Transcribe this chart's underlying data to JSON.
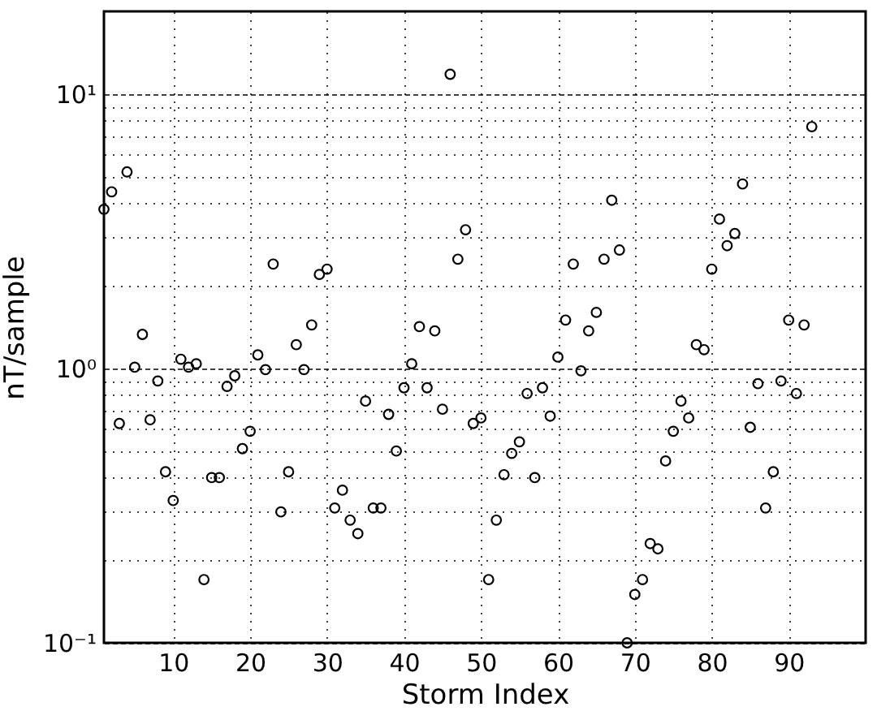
{
  "chart_data": {
    "type": "scatter",
    "xlabel": "Storm Index",
    "ylabel": "nT/sample",
    "color": "#000000",
    "marker": "circle",
    "log": "y",
    "grid": true,
    "xlim": [
      1,
      100
    ],
    "xticks": [
      10,
      20,
      30,
      40,
      50,
      60,
      70,
      80,
      90
    ],
    "ylim": [
      0.1,
      20
    ],
    "yticks": [
      {
        "value": 0.1,
        "label": "10⁻¹"
      },
      {
        "value": 0.2,
        "label": null
      },
      {
        "value": 0.3,
        "label": null
      },
      {
        "value": 0.4,
        "label": null
      },
      {
        "value": 0.5,
        "label": null
      },
      {
        "value": 0.6,
        "label": null
      },
      {
        "value": 0.7,
        "label": null
      },
      {
        "value": 0.8,
        "label": null
      },
      {
        "value": 0.9,
        "label": null
      },
      {
        "value": 1,
        "label": "10⁰"
      },
      {
        "value": 2,
        "label": null
      },
      {
        "value": 3,
        "label": null
      },
      {
        "value": 4,
        "label": null
      },
      {
        "value": 5,
        "label": null
      },
      {
        "value": 6,
        "label": null
      },
      {
        "value": 7,
        "label": null
      },
      {
        "value": 8,
        "label": null
      },
      {
        "value": 9,
        "label": null
      },
      {
        "value": 10,
        "label": "10¹"
      }
    ],
    "x": [
      1,
      2,
      3,
      4,
      5,
      6,
      7,
      8,
      9,
      10,
      11,
      12,
      13,
      14,
      15,
      16,
      17,
      18,
      19,
      20,
      21,
      22,
      23,
      24,
      25,
      26,
      27,
      28,
      29,
      30,
      31,
      32,
      33,
      34,
      35,
      36,
      37,
      38,
      39,
      40,
      41,
      42,
      43,
      44,
      45,
      46,
      47,
      48,
      49,
      50,
      51,
      52,
      53,
      54,
      55,
      56,
      57,
      58,
      59,
      60,
      61,
      62,
      63,
      64,
      65,
      66,
      67,
      68,
      69,
      70,
      71,
      72,
      73,
      74,
      75,
      76,
      77,
      78,
      79,
      80,
      81,
      82,
      83,
      84,
      85,
      86,
      87,
      88,
      89,
      90,
      91,
      92,
      93
    ],
    "values": [
      3.8,
      4.4,
      0.63,
      5.2,
      1.01,
      1.33,
      0.65,
      0.9,
      0.42,
      0.33,
      1.08,
      1.01,
      1.04,
      0.17,
      0.4,
      0.4,
      0.86,
      0.94,
      0.51,
      0.59,
      1.12,
      0.99,
      2.4,
      0.3,
      0.42,
      1.22,
      0.99,
      1.44,
      2.2,
      2.3,
      0.31,
      0.36,
      0.28,
      0.25,
      0.76,
      0.31,
      0.31,
      0.68,
      0.5,
      0.85,
      1.04,
      1.42,
      0.85,
      1.37,
      0.71,
      11.8,
      2.5,
      3.2,
      0.63,
      0.66,
      0.17,
      0.28,
      0.41,
      0.49,
      0.54,
      0.81,
      0.4,
      0.85,
      0.67,
      1.1,
      1.5,
      2.4,
      0.98,
      1.37,
      1.6,
      2.5,
      4.1,
      2.7,
      0.1,
      0.15,
      0.17,
      0.23,
      0.22,
      0.46,
      0.59,
      0.76,
      0.66,
      1.22,
      1.17,
      2.3,
      3.5,
      2.8,
      3.1,
      4.7,
      0.61,
      0.88,
      0.31,
      0.42,
      0.9,
      1.5,
      0.81,
      1.44,
      7.6
    ]
  }
}
